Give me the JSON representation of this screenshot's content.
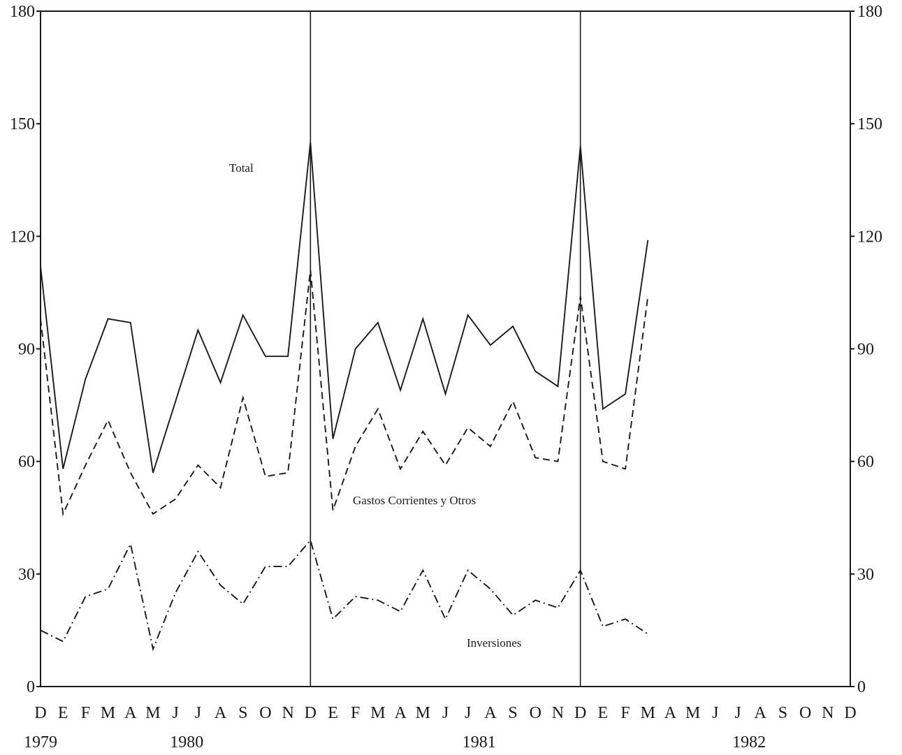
{
  "chart_data": {
    "type": "line",
    "title": "",
    "xlabel": "",
    "ylabel": "",
    "ylim": [
      0,
      180
    ],
    "yticks": [
      0,
      30,
      60,
      90,
      120,
      150,
      180
    ],
    "grid": false,
    "year_separators_at_month_index": [
      12,
      24
    ],
    "month_labels": [
      "D",
      "E",
      "F",
      "M",
      "A",
      "M",
      "J",
      "J",
      "A",
      "S",
      "O",
      "N",
      "D",
      "E",
      "F",
      "M",
      "A",
      "M",
      "J",
      "J",
      "A",
      "S",
      "O",
      "N",
      "D",
      "E",
      "F",
      "M",
      "A",
      "M",
      "J",
      "J",
      "A",
      "S",
      "O",
      "N",
      "D"
    ],
    "year_labels": [
      {
        "text": "1979",
        "at_index": 0
      },
      {
        "text": "1980",
        "at_index": 6.5
      },
      {
        "text": "1981",
        "at_index": 19.5
      },
      {
        "text": "1982",
        "at_index": 31.5
      }
    ],
    "series": [
      {
        "name": "Total",
        "style": "solid",
        "values": [
          112,
          58,
          82,
          98,
          97,
          57,
          76,
          95,
          81,
          99,
          88,
          88,
          145,
          66,
          90,
          97,
          79,
          98,
          78,
          99,
          91,
          96,
          84,
          80,
          144,
          74,
          78,
          119
        ]
      },
      {
        "name": "Gastos Corrientes y Otros",
        "style": "dashed",
        "values": [
          98,
          46,
          59,
          71,
          57,
          46,
          50,
          59,
          53,
          77,
          56,
          57,
          111,
          47,
          64,
          74,
          58,
          68,
          59,
          69,
          64,
          76,
          61,
          60,
          104,
          60,
          58,
          104
        ]
      },
      {
        "name": "Inversiones",
        "style": "dashdot",
        "values": [
          15,
          12,
          24,
          26,
          38,
          10,
          25,
          36,
          27,
          22,
          32,
          32,
          39,
          18,
          24,
          23,
          20,
          31,
          18,
          31,
          26,
          19,
          23,
          21,
          31,
          16,
          18,
          14
        ]
      }
    ]
  }
}
